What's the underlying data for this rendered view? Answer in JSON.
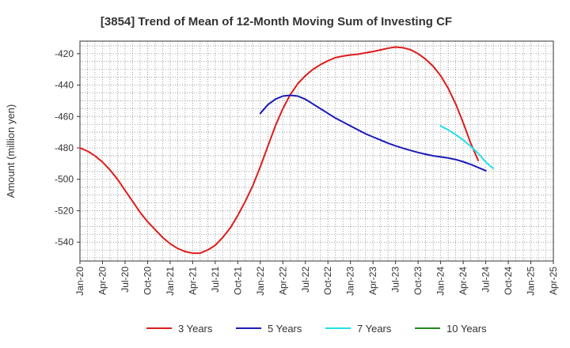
{
  "chart_data": {
    "type": "line",
    "title": "[3854]  Trend of Mean of 12-Month Moving Sum of Investing CF",
    "xlabel": "",
    "ylabel": "Amount (million yen)",
    "ylim": [
      -552,
      -412
    ],
    "yticks": [
      -420,
      -440,
      -460,
      -480,
      -500,
      -520,
      -540
    ],
    "x_tick_labels": [
      "Jan-20",
      "Apr-20",
      "Jul-20",
      "Oct-20",
      "Jan-21",
      "Apr-21",
      "Jul-21",
      "Oct-21",
      "Jan-22",
      "Apr-22",
      "Jul-22",
      "Oct-22",
      "Jan-23",
      "Apr-23",
      "Jul-23",
      "Oct-23",
      "Jan-24",
      "Apr-24",
      "Jul-24",
      "Oct-24",
      "Jan-25",
      "Apr-25"
    ],
    "grid": true,
    "legend_position": "bottom",
    "series": [
      {
        "name": "3 Years",
        "color": "#dd1c1c",
        "points": [
          [
            0,
            -480
          ],
          [
            1,
            -482
          ],
          [
            2,
            -485
          ],
          [
            3,
            -489
          ],
          [
            4,
            -494
          ],
          [
            5,
            -500
          ],
          [
            6,
            -507
          ],
          [
            7,
            -514
          ],
          [
            8,
            -521
          ],
          [
            9,
            -527
          ],
          [
            10,
            -532
          ],
          [
            11,
            -537
          ],
          [
            12,
            -541
          ],
          [
            13,
            -544
          ],
          [
            14,
            -546
          ],
          [
            15,
            -547
          ],
          [
            16,
            -547
          ],
          [
            17,
            -545
          ],
          [
            18,
            -542
          ],
          [
            19,
            -537
          ],
          [
            20,
            -531
          ],
          [
            21,
            -523
          ],
          [
            22,
            -514
          ],
          [
            23,
            -504
          ],
          [
            24,
            -492
          ],
          [
            25,
            -479
          ],
          [
            26,
            -466
          ],
          [
            27,
            -455
          ],
          [
            28,
            -446
          ],
          [
            29,
            -439
          ],
          [
            30,
            -434
          ],
          [
            31,
            -430
          ],
          [
            32,
            -427
          ],
          [
            33,
            -424.5
          ],
          [
            34,
            -422.5
          ],
          [
            35,
            -421.5
          ],
          [
            36,
            -420.8
          ],
          [
            37,
            -420.3
          ],
          [
            38,
            -419.5
          ],
          [
            39,
            -418.6
          ],
          [
            40,
            -417.6
          ],
          [
            41,
            -416.5
          ],
          [
            42,
            -415.8
          ],
          [
            43,
            -416.2
          ],
          [
            44,
            -417.5
          ],
          [
            45,
            -420
          ],
          [
            46,
            -423.5
          ],
          [
            47,
            -428
          ],
          [
            48,
            -434
          ],
          [
            49,
            -442
          ],
          [
            50,
            -452
          ],
          [
            51,
            -464
          ],
          [
            52,
            -477
          ],
          [
            53,
            -488
          ]
        ]
      },
      {
        "name": "5 Years",
        "color": "#1a1ab8",
        "points": [
          [
            24,
            -458
          ],
          [
            25,
            -452.5
          ],
          [
            26,
            -449
          ],
          [
            27,
            -447
          ],
          [
            28,
            -446.5
          ],
          [
            29,
            -447
          ],
          [
            30,
            -449
          ],
          [
            31,
            -452
          ],
          [
            32,
            -455
          ],
          [
            33,
            -458
          ],
          [
            34,
            -461
          ],
          [
            35,
            -463.5
          ],
          [
            36,
            -466
          ],
          [
            37,
            -468.5
          ],
          [
            38,
            -471
          ],
          [
            39,
            -473
          ],
          [
            40,
            -475
          ],
          [
            41,
            -477
          ],
          [
            42,
            -478.7
          ],
          [
            43,
            -480.2
          ],
          [
            44,
            -481.6
          ],
          [
            45,
            -482.9
          ],
          [
            46,
            -484
          ],
          [
            47,
            -485
          ],
          [
            48,
            -485.7
          ],
          [
            49,
            -486.4
          ],
          [
            50,
            -487.4
          ],
          [
            51,
            -488.8
          ],
          [
            52,
            -490.5
          ],
          [
            53,
            -492.5
          ],
          [
            54,
            -494.5
          ]
        ]
      },
      {
        "name": "7 Years",
        "color": "#22e0ea",
        "points": [
          [
            48,
            -466
          ],
          [
            49,
            -468.5
          ],
          [
            50,
            -471.5
          ],
          [
            51,
            -475
          ],
          [
            52,
            -479
          ],
          [
            53,
            -483.5
          ],
          [
            54,
            -489
          ],
          [
            55,
            -493
          ]
        ]
      },
      {
        "name": "10 Years",
        "color": "#1f8a1f",
        "points": []
      }
    ]
  }
}
